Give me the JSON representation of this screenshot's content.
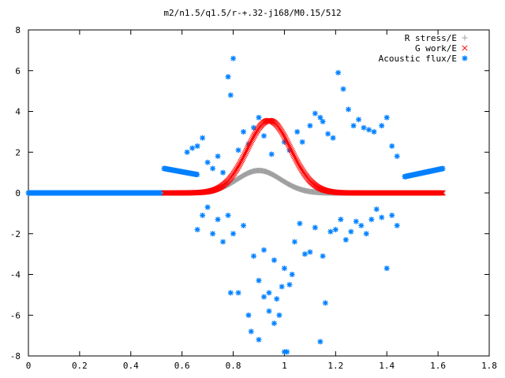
{
  "chart_data": {
    "type": "scatter",
    "title": "m2/n1.5/q1.5/r-+.32-j168/M0.15/512",
    "xlabel": "",
    "ylabel": "",
    "xlim": [
      0,
      1.8
    ],
    "ylim": [
      -8,
      8
    ],
    "x_ticks": [
      0,
      0.2,
      0.4,
      0.6,
      0.8,
      1,
      1.2,
      1.4,
      1.6,
      1.8
    ],
    "y_ticks": [
      -8,
      -6,
      -4,
      -2,
      0,
      2,
      4,
      6,
      8
    ],
    "x_tick_labels": [
      "0",
      "0.2",
      "0.4",
      "0.6",
      "0.8",
      "1",
      "1.2",
      "1.4",
      "1.6",
      "1.8"
    ],
    "y_tick_labels": [
      "-8",
      "-6",
      "-4",
      "-2",
      "0",
      "2",
      "4",
      "6",
      "8"
    ],
    "legend_position": "top-right",
    "grid": false,
    "series": [
      {
        "name": "R stress/E",
        "marker": "+",
        "color": "#a0a0a0",
        "x_range": [
          0.53,
          1.62
        ],
        "profile": "gaussian",
        "peak_x": 0.9,
        "peak_y": 1.1,
        "width": 0.12
      },
      {
        "name": "G work/E",
        "marker": "x",
        "color": "#ff0000",
        "x_range": [
          0.53,
          1.62
        ],
        "profile": "gaussian",
        "peak_x": 0.94,
        "peak_y": 3.55,
        "width": 0.12
      },
      {
        "name": "Acoustic flux/E",
        "marker": "*",
        "color": "#0080ff",
        "baseline_x_range": [
          0,
          0.53
        ],
        "envelope_left": {
          "x_range": [
            0.53,
            0.66
          ],
          "y_start": 1.2,
          "y_end": 0.9
        },
        "envelope_right": {
          "x_range": [
            1.47,
            1.62
          ],
          "y_start": 0.8,
          "y_end": 1.2
        },
        "scatter_points": [
          [
            0.62,
            2.0
          ],
          [
            0.64,
            2.2
          ],
          [
            0.66,
            2.3
          ],
          [
            0.68,
            2.7
          ],
          [
            0.7,
            1.5
          ],
          [
            0.72,
            1.2
          ],
          [
            0.74,
            1.8
          ],
          [
            0.76,
            1.0
          ],
          [
            0.78,
            5.7
          ],
          [
            0.79,
            4.8
          ],
          [
            0.8,
            6.6
          ],
          [
            0.82,
            2.1
          ],
          [
            0.84,
            3.0
          ],
          [
            0.86,
            2.4
          ],
          [
            0.88,
            3.2
          ],
          [
            0.9,
            3.7
          ],
          [
            0.92,
            2.8
          ],
          [
            0.95,
            1.9
          ],
          [
            1.0,
            2.5
          ],
          [
            1.02,
            2.1
          ],
          [
            1.05,
            3.0
          ],
          [
            1.07,
            2.5
          ],
          [
            1.1,
            3.3
          ],
          [
            1.12,
            3.9
          ],
          [
            1.14,
            3.7
          ],
          [
            1.15,
            3.5
          ],
          [
            1.17,
            2.9
          ],
          [
            1.19,
            2.7
          ],
          [
            1.21,
            5.9
          ],
          [
            1.23,
            5.1
          ],
          [
            1.25,
            4.1
          ],
          [
            1.27,
            3.3
          ],
          [
            1.29,
            3.6
          ],
          [
            1.31,
            3.2
          ],
          [
            1.33,
            3.1
          ],
          [
            1.35,
            3.0
          ],
          [
            1.38,
            3.3
          ],
          [
            1.4,
            3.7
          ],
          [
            1.42,
            2.3
          ],
          [
            1.44,
            1.8
          ],
          [
            0.66,
            -1.8
          ],
          [
            0.68,
            -1.1
          ],
          [
            0.7,
            -0.7
          ],
          [
            0.72,
            -2.0
          ],
          [
            0.74,
            -1.3
          ],
          [
            0.76,
            -2.4
          ],
          [
            0.78,
            -1.1
          ],
          [
            0.79,
            -4.9
          ],
          [
            0.8,
            -2.0
          ],
          [
            0.82,
            -4.9
          ],
          [
            0.84,
            -1.6
          ],
          [
            0.86,
            -6.0
          ],
          [
            0.88,
            -3.1
          ],
          [
            0.9,
            -4.3
          ],
          [
            0.92,
            -2.8
          ],
          [
            0.94,
            -4.9
          ],
          [
            0.96,
            -3.3
          ],
          [
            0.98,
            -6.0
          ],
          [
            1.0,
            -3.7
          ],
          [
            1.02,
            -4.5
          ],
          [
            1.04,
            -2.4
          ],
          [
            1.06,
            -1.5
          ],
          [
            1.08,
            -3.0
          ],
          [
            1.1,
            -2.9
          ],
          [
            1.12,
            -1.7
          ],
          [
            1.14,
            -7.3
          ],
          [
            1.15,
            -3.1
          ],
          [
            1.16,
            -5.4
          ],
          [
            1.18,
            -1.9
          ],
          [
            1.2,
            -1.8
          ],
          [
            1.22,
            -1.3
          ],
          [
            1.24,
            -2.3
          ],
          [
            1.26,
            -1.9
          ],
          [
            1.28,
            -1.4
          ],
          [
            1.3,
            -1.6
          ],
          [
            1.32,
            -2.0
          ],
          [
            1.34,
            -1.3
          ],
          [
            1.36,
            -0.8
          ],
          [
            1.38,
            -1.2
          ],
          [
            1.4,
            -3.7
          ],
          [
            1.42,
            -1.1
          ],
          [
            1.44,
            -1.6
          ],
          [
            0.87,
            -6.8
          ],
          [
            0.9,
            -7.2
          ],
          [
            1.0,
            -7.8
          ],
          [
            1.01,
            -7.8
          ],
          [
            0.96,
            -6.4
          ],
          [
            0.94,
            -5.8
          ],
          [
            0.92,
            -5.1
          ],
          [
            0.97,
            -5.2
          ],
          [
            0.99,
            -4.6
          ],
          [
            1.03,
            -4.0
          ]
        ]
      }
    ]
  }
}
